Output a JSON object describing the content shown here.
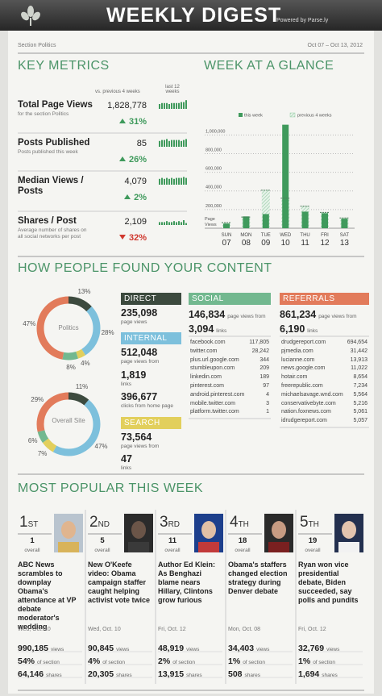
{
  "header": {
    "title": "WEEKLY DIGEST",
    "powered_by": "Powered by Parse.ly"
  },
  "section": {
    "name": "Section Politics",
    "dates": "Oct 07 – Oct 13, 2012"
  },
  "key_metrics": {
    "title": "KEY METRICS",
    "compare_label": "vs. previous 4 weeks",
    "trend_label": "last 12 weeks",
    "trend_color": "#3f9a5c",
    "sparkline_ylim": [
      0,
      10
    ],
    "metrics": [
      {
        "label": "Total Page Views",
        "note": "for the section Politics",
        "value": "1,828,778",
        "change": "31%",
        "direction": "up",
        "trend": [
          5,
          6,
          6,
          6,
          5,
          6,
          6,
          6,
          6,
          7,
          7,
          9
        ]
      },
      {
        "label": "Posts Published",
        "note": "Posts published this week",
        "value": "85",
        "change": "26%",
        "direction": "up",
        "trend": [
          6,
          7,
          7,
          8,
          6,
          7,
          7,
          7,
          7,
          6,
          7,
          8
        ]
      },
      {
        "label": "Median Views / Posts",
        "value": "4,079",
        "change": "2%",
        "direction": "up",
        "trend": [
          6,
          7,
          6,
          7,
          6,
          7,
          6,
          7,
          7,
          7,
          8,
          7
        ]
      },
      {
        "label": "Shares / Post",
        "note": "Average number of shares on all social networks per post",
        "value": "2,109",
        "change": "32%",
        "direction": "down",
        "trend": [
          3,
          3,
          3,
          4,
          3,
          3,
          4,
          3,
          4,
          3,
          5,
          2
        ]
      }
    ]
  },
  "week_at_a_glance": {
    "title": "WEEK AT A GLANCE",
    "type": "bar",
    "y_label": "Page Views",
    "days": [
      "SUN",
      "MON",
      "TUE",
      "WED",
      "THU",
      "FRI",
      "SAT"
    ],
    "dates": [
      "07",
      "08",
      "09",
      "10",
      "11",
      "12",
      "13"
    ],
    "series": [
      {
        "name": "this week",
        "color": "#3f9a5c",
        "values": [
          50000,
          127000,
          152000,
          1110000,
          178000,
          161000,
          102000
        ]
      },
      {
        "name": "previous 4 weeks",
        "color": "#9ccfa9",
        "values": [
          60000,
          120000,
          407000,
          322000,
          237000,
          170000,
          110000
        ]
      }
    ],
    "ylim": [
      0,
      1150000
    ],
    "yticks": [
      {
        "value": 200000,
        "label": "200,000"
      },
      {
        "value": 400000,
        "label": "400,000"
      },
      {
        "value": 600000,
        "label": "600,000"
      },
      {
        "value": 800000,
        "label": "800,000"
      },
      {
        "value": 1000000,
        "label": "1,000,000"
      }
    ],
    "grid": true
  },
  "sources": {
    "title": "HOW PEOPLE FOUND YOUR CONTENT",
    "colors": [
      "#3c4a3e",
      "#7dc0dc",
      "#e2cf5c",
      "#72b88f",
      "#e27b5b"
    ],
    "donuts": [
      {
        "label": "Politics",
        "values": [
          13,
          28,
          4,
          8,
          47
        ],
        "value_labels": [
          "13%",
          "28%",
          "4%",
          "8%",
          "47%"
        ]
      },
      {
        "label": "Overall Site",
        "values": [
          11,
          47,
          7,
          6,
          29
        ],
        "value_labels": [
          "11%",
          "47%",
          "7%",
          "6%",
          "29%"
        ]
      }
    ],
    "direct": {
      "title": "DIRECT",
      "page_views": "235,098",
      "page_views_label": "page views"
    },
    "internal": {
      "title": "INTERNAL",
      "page_views": "512,048",
      "page_views_label": "page views from",
      "links": "1,819",
      "links_label": "links",
      "home_clicks": "396,677",
      "home_clicks_label": "clicks from home page"
    },
    "search": {
      "title": "SEARCH",
      "page_views": "73,564",
      "page_views_label": "page views from",
      "links": "47",
      "links_label": "links"
    },
    "social": {
      "title": "SOCIAL",
      "page_views": "146,834",
      "page_views_label": "page views from",
      "links": "3,094",
      "links_label": "links",
      "sites": [
        {
          "name": "facebook.com",
          "views": "117,805"
        },
        {
          "name": "twitter.com",
          "views": "28,242"
        },
        {
          "name": "plus.url.google.com",
          "views": "344"
        },
        {
          "name": "stumbleupon.com",
          "views": "209"
        },
        {
          "name": "linkedin.com",
          "views": "189"
        },
        {
          "name": "pinterest.com",
          "views": "97"
        },
        {
          "name": "android.pinterest.com",
          "views": "4"
        },
        {
          "name": "mobile.twitter.com",
          "views": "3"
        },
        {
          "name": "platform.twitter.com",
          "views": "1"
        }
      ]
    },
    "referrals": {
      "title": "REFERRALS",
      "page_views": "861,234",
      "page_views_label": "page views from",
      "links": "6,190",
      "links_label": "links",
      "sites": [
        {
          "name": "drudgereport.com",
          "views": "694,654"
        },
        {
          "name": "pjmedia.com",
          "views": "31,442"
        },
        {
          "name": "lucianne.com",
          "views": "13,913"
        },
        {
          "name": "news.google.com",
          "views": "11,022"
        },
        {
          "name": "hotair.com",
          "views": "8,654"
        },
        {
          "name": "freerepublic.com",
          "views": "7,234"
        },
        {
          "name": "michaelsavage.wnd.com",
          "views": "5,564"
        },
        {
          "name": "conservativebyte.com",
          "views": "5,216"
        },
        {
          "name": "nation.foxnews.com",
          "views": "5,061"
        },
        {
          "name": "idrudgereport.com",
          "views": "5,057"
        }
      ]
    }
  },
  "most_popular": {
    "title": "MOST POPULAR THIS WEEK",
    "overall_label": "overall",
    "views_label": "views",
    "section_label": "of section",
    "shares_label": "shares",
    "posts": [
      {
        "rank": "1",
        "rank_suffix": "ST",
        "overall": "1",
        "title": "ABC News scrambles to downplay Obama's attendance at VP debate moderator's wedding",
        "date": "Wed, Oct. 10",
        "views": "990,185",
        "section_share": "54%",
        "shares": "64,146"
      },
      {
        "rank": "2",
        "rank_suffix": "ND",
        "overall": "5",
        "title": "New O'Keefe video: Obama campaign staffer caught helping activist vote twice",
        "date": "Wed, Oct. 10",
        "views": "90,845",
        "section_share": "4%",
        "shares": "20,305"
      },
      {
        "rank": "3",
        "rank_suffix": "RD",
        "overall": "11",
        "title": "Author Ed Klein: As Benghazi blame nears Hillary, Clintons grow furious",
        "date": "Fri, Oct. 12",
        "views": "48,919",
        "section_share": "2%",
        "shares": "13,915"
      },
      {
        "rank": "4",
        "rank_suffix": "TH",
        "overall": "18",
        "title": "Obama's staffers changed election strategy during Denver debate",
        "date": "Mon, Oct. 08",
        "views": "34,403",
        "section_share": "1%",
        "shares": "508"
      },
      {
        "rank": "5",
        "rank_suffix": "TH",
        "overall": "19",
        "title": "Ryan won vice presidential debate, Biden succeeded, say polls and pundits",
        "date": "Fri, Oct. 12",
        "views": "32,769",
        "section_share": "1%",
        "shares": "1,694"
      }
    ]
  }
}
